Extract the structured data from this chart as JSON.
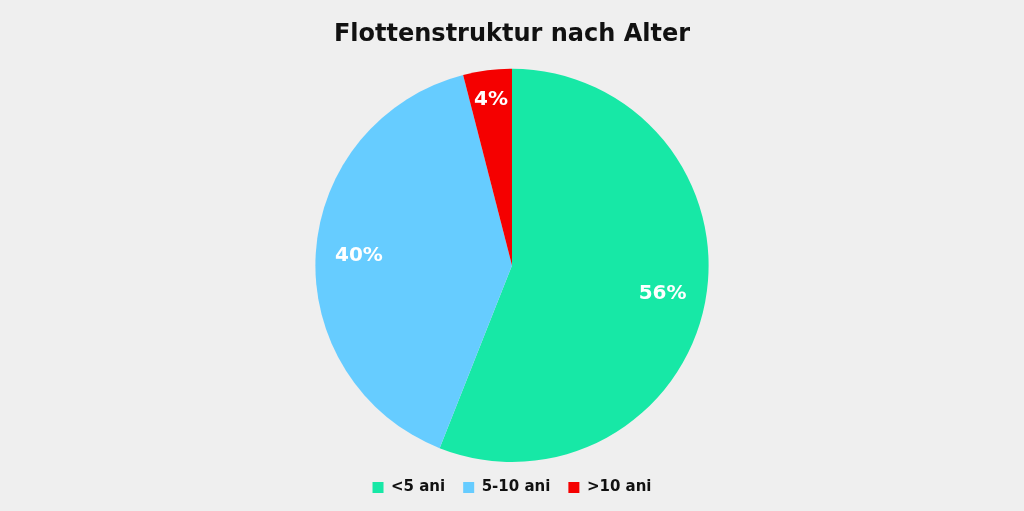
{
  "chart_data": {
    "type": "pie",
    "title": "Flottenstruktur nach Alter",
    "categories": [
      "<5 ani",
      "5-10 ani",
      ">10 ani"
    ],
    "values": [
      56,
      40,
      4
    ],
    "colors": [
      "#17e8a6",
      "#66ccff",
      "#f50000"
    ],
    "value_labels": [
      "56%",
      "40%",
      "4%"
    ],
    "legend": "bottom"
  }
}
